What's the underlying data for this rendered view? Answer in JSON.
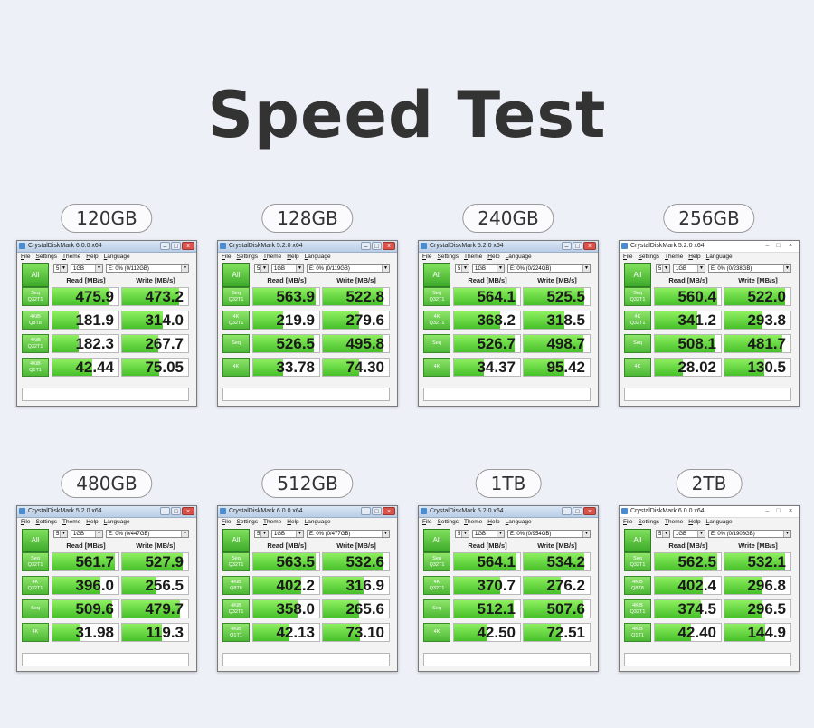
{
  "page_title": "Speed Test",
  "columns": {
    "read": "Read [MB/s]",
    "write": "Write [MB/s]"
  },
  "menu": [
    "File",
    "Settings",
    "Theme",
    "Help",
    "Language"
  ],
  "all_label": "All",
  "count_label": "5",
  "size_label": "1GB",
  "cards": [
    {
      "capacity": "120GB",
      "title": "CrystalDiskMark 6.0.0 x64",
      "drive": "E: 0% (0/112GB)",
      "style": "w7",
      "rows": [
        {
          "label": "Seq\nQ32T1",
          "read": "475.9",
          "write": "473.2",
          "read_frac": 0.86,
          "write_frac": 0.86
        },
        {
          "label": "4KiB\nQ8T8",
          "read": "181.9",
          "write": "314.0",
          "read_frac": 0.4,
          "write_frac": 0.62
        },
        {
          "label": "4KiB\nQ32T1",
          "read": "182.3",
          "write": "267.7",
          "read_frac": 0.4,
          "write_frac": 0.55
        },
        {
          "label": "4KiB\nQ1T1",
          "read": "42.44",
          "write": "75.05",
          "read_frac": 0.6,
          "write_frac": 0.56
        }
      ]
    },
    {
      "capacity": "128GB",
      "title": "CrystalDiskMark 5.2.0 x64",
      "drive": "E: 0% (0/119GB)",
      "style": "w7",
      "rows": [
        {
          "label": "Seq\nQ32T1",
          "read": "563.9",
          "write": "522.8",
          "read_frac": 0.95,
          "write_frac": 0.92
        },
        {
          "label": "4K\nQ32T1",
          "read": "219.9",
          "write": "279.6",
          "read_frac": 0.45,
          "write_frac": 0.55
        },
        {
          "label": "Seq",
          "read": "526.5",
          "write": "495.8",
          "read_frac": 0.92,
          "write_frac": 0.9
        },
        {
          "label": "4K",
          "read": "33.78",
          "write": "74.30",
          "read_frac": 0.45,
          "write_frac": 0.55
        }
      ]
    },
    {
      "capacity": "240GB",
      "title": "CrystalDiskMark 5.2.0 x64",
      "drive": "E: 0% (0/224GB)",
      "style": "w7",
      "rows": [
        {
          "label": "Seq\nQ32T1",
          "read": "564.1",
          "write": "525.5",
          "read_frac": 0.95,
          "write_frac": 0.92
        },
        {
          "label": "4K\nQ32T1",
          "read": "368.2",
          "write": "318.5",
          "read_frac": 0.7,
          "write_frac": 0.62
        },
        {
          "label": "Seq",
          "read": "526.7",
          "write": "498.7",
          "read_frac": 0.92,
          "write_frac": 0.9
        },
        {
          "label": "4K",
          "read": "34.37",
          "write": "95.42",
          "read_frac": 0.45,
          "write_frac": 0.62
        }
      ]
    },
    {
      "capacity": "256GB",
      "title": "CrystalDiskMark 5.2.0 x64",
      "drive": "E: 0% (0/238GB)",
      "style": "w10",
      "rows": [
        {
          "label": "Seq\nQ32T1",
          "read": "560.4",
          "write": "522.0",
          "read_frac": 0.95,
          "write_frac": 0.92
        },
        {
          "label": "4K\nQ32T1",
          "read": "341.2",
          "write": "293.8",
          "read_frac": 0.65,
          "write_frac": 0.58
        },
        {
          "label": "Seq",
          "read": "508.1",
          "write": "481.7",
          "read_frac": 0.9,
          "write_frac": 0.88
        },
        {
          "label": "4K",
          "read": "28.02",
          "write": "130.5",
          "read_frac": 0.42,
          "write_frac": 0.6
        }
      ]
    },
    {
      "capacity": "480GB",
      "title": "CrystalDiskMark 5.2.0 x64",
      "drive": "E: 0% (0/447GB)",
      "style": "w7",
      "rows": [
        {
          "label": "Seq\nQ32T1",
          "read": "561.7",
          "write": "527.9",
          "read_frac": 0.95,
          "write_frac": 0.92
        },
        {
          "label": "4K\nQ32T1",
          "read": "396.0",
          "write": "256.5",
          "read_frac": 0.72,
          "write_frac": 0.52
        },
        {
          "label": "Seq",
          "read": "509.6",
          "write": "479.7",
          "read_frac": 0.9,
          "write_frac": 0.88
        },
        {
          "label": "4K",
          "read": "31.98",
          "write": "119.3",
          "read_frac": 0.43,
          "write_frac": 0.6
        }
      ]
    },
    {
      "capacity": "512GB",
      "title": "CrystalDiskMark 6.0.0 x64",
      "drive": "E: 0% (0/477GB)",
      "style": "w7",
      "rows": [
        {
          "label": "Seq\nQ32T1",
          "read": "563.5",
          "write": "532.6",
          "read_frac": 0.95,
          "write_frac": 0.92
        },
        {
          "label": "4KiB\nQ8T8",
          "read": "402.2",
          "write": "316.9",
          "read_frac": 0.72,
          "write_frac": 0.62
        },
        {
          "label": "4KiB\nQ32T1",
          "read": "358.0",
          "write": "265.6",
          "read_frac": 0.67,
          "write_frac": 0.55
        },
        {
          "label": "4KiB\nQ1T1",
          "read": "42.13",
          "write": "73.10",
          "read_frac": 0.55,
          "write_frac": 0.56
        }
      ]
    },
    {
      "capacity": "1TB",
      "title": "CrystalDiskMark 5.2.0 x64",
      "drive": "E: 0% (0/954GB)",
      "style": "w7",
      "rows": [
        {
          "label": "Seq\nQ32T1",
          "read": "564.1",
          "write": "534.2",
          "read_frac": 0.95,
          "write_frac": 0.92
        },
        {
          "label": "4K\nQ32T1",
          "read": "370.7",
          "write": "276.2",
          "read_frac": 0.7,
          "write_frac": 0.56
        },
        {
          "label": "Seq",
          "read": "512.1",
          "write": "507.6",
          "read_frac": 0.9,
          "write_frac": 0.9
        },
        {
          "label": "4K",
          "read": "42.50",
          "write": "72.51",
          "read_frac": 0.5,
          "write_frac": 0.56
        }
      ]
    },
    {
      "capacity": "2TB",
      "title": "CrystalDiskMark 6.0.0 x64",
      "drive": "E: 0% (0/1908GB)",
      "style": "w10",
      "rows": [
        {
          "label": "Seq\nQ32T1",
          "read": "562.5",
          "write": "532.1",
          "read_frac": 0.95,
          "write_frac": 0.92
        },
        {
          "label": "4KiB\nQ8T8",
          "read": "402.4",
          "write": "296.8",
          "read_frac": 0.72,
          "write_frac": 0.58
        },
        {
          "label": "4KiB\nQ32T1",
          "read": "374.5",
          "write": "296.5",
          "read_frac": 0.7,
          "write_frac": 0.58
        },
        {
          "label": "4KiB\nQ1T1",
          "read": "42.40",
          "write": "144.9",
          "read_frac": 0.55,
          "write_frac": 0.62
        }
      ]
    }
  ]
}
